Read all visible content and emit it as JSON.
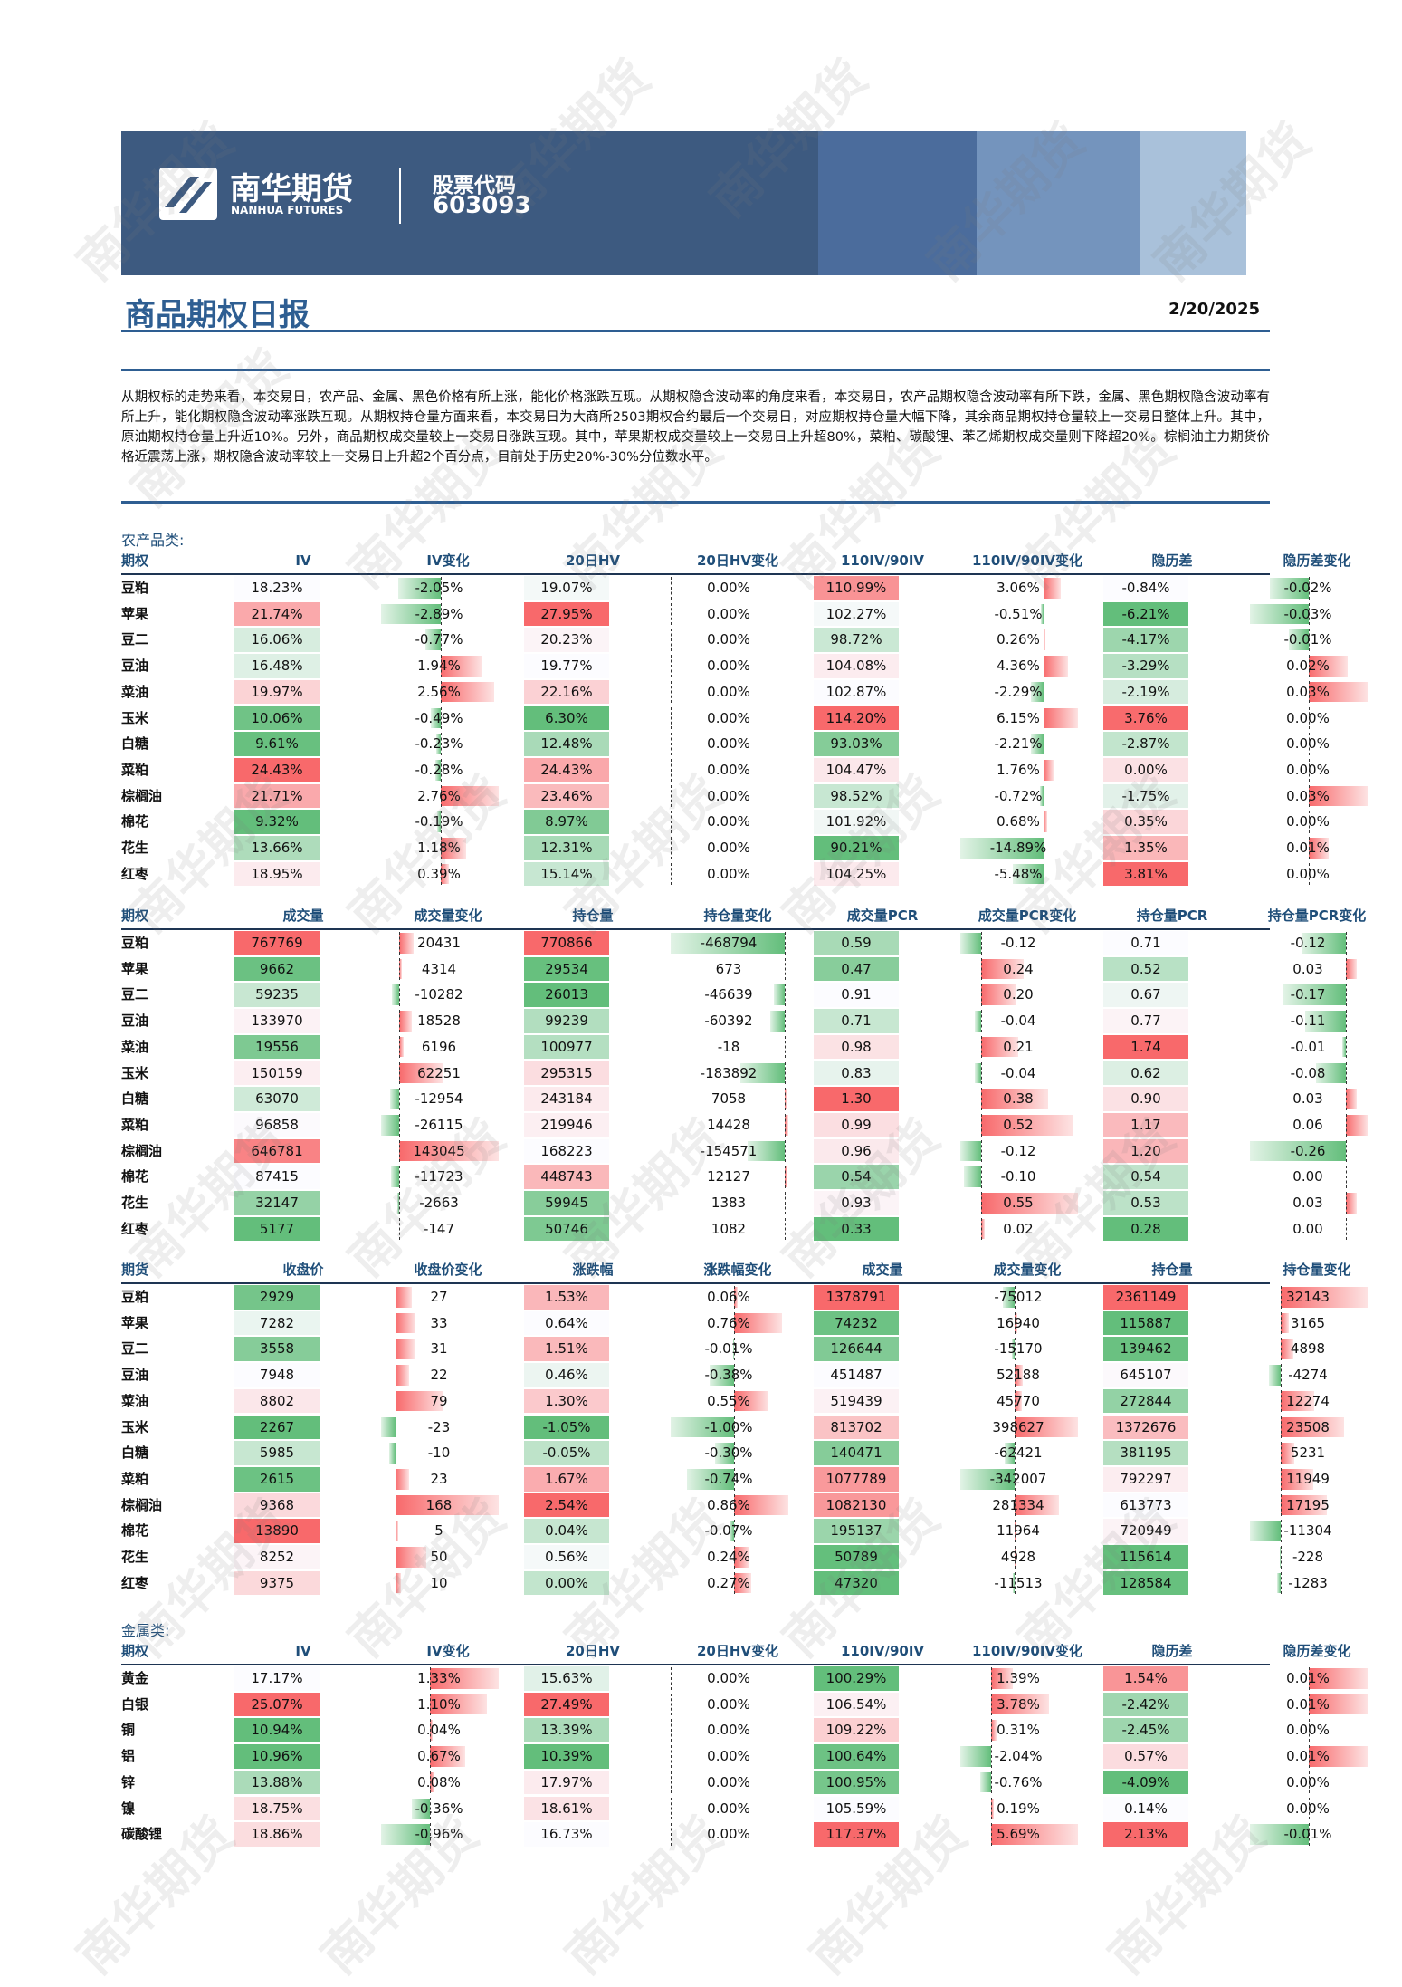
{
  "header": {
    "logo_cn": "南华期货",
    "logo_en": "NANHUA FUTURES",
    "code_label": "股票代码",
    "code": "603093"
  },
  "title": "商品期权日报",
  "date": "2/20/2025",
  "summary": "从期权标的走势来看，本交易日，农产品、金属、黑色价格有所上涨，能化价格涨跌互现。从期权隐含波动率的角度来看，本交易日，农产品期权隐含波动率有所下跌，金属、黑色期权隐含波动率有所上升，能化期权隐含波动率涨跌互现。从期权持仓量方面来看，本交易日为大商所2503期权合约最后一个交易日，对应期权持仓量大幅下降，其余商品期权持仓量较上一交易日整体上升。其中，原油期权持仓量上升近10%。另外，商品期权成交量较上一交易日涨跌互现。其中，苹果期权成交量较上一交易日上升超80%，菜粕、碳酸锂、苯乙烯期权成交量则下降超20%。棕榈油主力期货价格近震荡上涨，期权隐含波动率较上一交易日上升超2个百分点，目前处于历史20%-30%分位数水平。",
  "watermark": "南华期货",
  "groups": [
    {
      "label": "农产品类:",
      "tables": [
        {
          "headers": [
            "期权",
            "IV",
            "IV变化",
            "20日HV",
            "20日HV变化",
            "110IV/90IV",
            "110IV/90IV变化",
            "隐历差",
            "隐历差变化"
          ],
          "rows": [
            [
              "豆粕",
              "18.23%",
              "-2.05%",
              "19.07%",
              "0.00%",
              "110.99%",
              "3.06%",
              "-0.84%",
              "-0.02%"
            ],
            [
              "苹果",
              "21.74%",
              "-2.89%",
              "27.95%",
              "0.00%",
              "102.27%",
              "-0.51%",
              "-6.21%",
              "-0.03%"
            ],
            [
              "豆二",
              "16.06%",
              "-0.77%",
              "20.23%",
              "0.00%",
              "98.72%",
              "0.26%",
              "-4.17%",
              "-0.01%"
            ],
            [
              "豆油",
              "16.48%",
              "1.94%",
              "19.77%",
              "0.00%",
              "104.08%",
              "4.36%",
              "-3.29%",
              "0.02%"
            ],
            [
              "菜油",
              "19.97%",
              "2.56%",
              "22.16%",
              "0.00%",
              "102.87%",
              "-2.29%",
              "-2.19%",
              "0.03%"
            ],
            [
              "玉米",
              "10.06%",
              "-0.49%",
              "6.30%",
              "0.00%",
              "114.20%",
              "6.15%",
              "3.76%",
              "0.00%"
            ],
            [
              "白糖",
              "9.61%",
              "-0.23%",
              "12.48%",
              "0.00%",
              "93.03%",
              "-2.21%",
              "-2.87%",
              "0.00%"
            ],
            [
              "菜粕",
              "24.43%",
              "-0.28%",
              "24.43%",
              "0.00%",
              "104.47%",
              "1.76%",
              "0.00%",
              "0.00%"
            ],
            [
              "棕榈油",
              "21.71%",
              "2.76%",
              "23.46%",
              "0.00%",
              "98.52%",
              "-0.72%",
              "-1.75%",
              "0.03%"
            ],
            [
              "棉花",
              "9.32%",
              "-0.19%",
              "8.97%",
              "0.00%",
              "101.92%",
              "0.68%",
              "0.35%",
              "0.00%"
            ],
            [
              "花生",
              "13.66%",
              "1.18%",
              "12.31%",
              "0.00%",
              "90.21%",
              "-14.89%",
              "1.35%",
              "0.01%"
            ],
            [
              "红枣",
              "18.95%",
              "0.39%",
              "15.14%",
              "0.00%",
              "104.25%",
              "-5.48%",
              "3.81%",
              "0.00%"
            ]
          ]
        },
        {
          "headers": [
            "期权",
            "成交量",
            "成交量变化",
            "持仓量",
            "持仓量变化",
            "成交量PCR",
            "成交量PCR变化",
            "持仓量PCR",
            "持仓量PCR变化"
          ],
          "rows": [
            [
              "豆粕",
              "767769",
              "20431",
              "770866",
              "-468794",
              "0.59",
              "-0.12",
              "0.71",
              "-0.12"
            ],
            [
              "苹果",
              "9662",
              "4314",
              "29534",
              "673",
              "0.47",
              "0.24",
              "0.52",
              "0.03"
            ],
            [
              "豆二",
              "59235",
              "-10282",
              "26013",
              "-46639",
              "0.91",
              "0.20",
              "0.67",
              "-0.17"
            ],
            [
              "豆油",
              "133970",
              "18528",
              "99239",
              "-60392",
              "0.71",
              "-0.04",
              "0.77",
              "-0.11"
            ],
            [
              "菜油",
              "19556",
              "6196",
              "100977",
              "-18",
              "0.98",
              "0.21",
              "1.74",
              "-0.01"
            ],
            [
              "玉米",
              "150159",
              "62251",
              "295315",
              "-183892",
              "0.83",
              "-0.04",
              "0.62",
              "-0.08"
            ],
            [
              "白糖",
              "63070",
              "-12954",
              "243184",
              "7058",
              "1.30",
              "0.38",
              "0.90",
              "0.03"
            ],
            [
              "菜粕",
              "96858",
              "-26115",
              "219946",
              "14428",
              "0.99",
              "0.52",
              "1.17",
              "0.06"
            ],
            [
              "棕榈油",
              "646781",
              "143045",
              "168223",
              "-154571",
              "0.96",
              "-0.12",
              "1.20",
              "-0.26"
            ],
            [
              "棉花",
              "87415",
              "-11723",
              "448743",
              "12127",
              "0.54",
              "-0.10",
              "0.54",
              "0.00"
            ],
            [
              "花生",
              "32147",
              "-2663",
              "59945",
              "1383",
              "0.93",
              "0.55",
              "0.53",
              "0.03"
            ],
            [
              "红枣",
              "5177",
              "-147",
              "50746",
              "1082",
              "0.33",
              "0.02",
              "0.28",
              "0.00"
            ]
          ]
        },
        {
          "headers": [
            "期货",
            "收盘价",
            "收盘价变化",
            "涨跌幅",
            "涨跌幅变化",
            "成交量",
            "成交量变化",
            "持仓量",
            "持仓量变化"
          ],
          "rows": [
            [
              "豆粕",
              "2929",
              "27",
              "1.53%",
              "0.06%",
              "1378791",
              "-75012",
              "2361149",
              "32143"
            ],
            [
              "苹果",
              "7282",
              "33",
              "0.64%",
              "0.76%",
              "74232",
              "16940",
              "115887",
              "3165"
            ],
            [
              "豆二",
              "3558",
              "31",
              "1.51%",
              "-0.01%",
              "126644",
              "-15170",
              "139462",
              "4898"
            ],
            [
              "豆油",
              "7948",
              "22",
              "0.46%",
              "-0.38%",
              "451487",
              "52188",
              "645107",
              "-4274"
            ],
            [
              "菜油",
              "8802",
              "79",
              "1.30%",
              "0.55%",
              "519439",
              "45770",
              "272844",
              "12274"
            ],
            [
              "玉米",
              "2267",
              "-23",
              "-1.05%",
              "-1.00%",
              "813702",
              "398627",
              "1372676",
              "23508"
            ],
            [
              "白糖",
              "5985",
              "-10",
              "-0.05%",
              "-0.30%",
              "140471",
              "-62421",
              "381195",
              "5231"
            ],
            [
              "菜粕",
              "2615",
              "23",
              "1.67%",
              "-0.74%",
              "1077789",
              "-342007",
              "792297",
              "11949"
            ],
            [
              "棕榈油",
              "9368",
              "168",
              "2.54%",
              "0.86%",
              "1082130",
              "281334",
              "613773",
              "17195"
            ],
            [
              "棉花",
              "13890",
              "5",
              "0.04%",
              "-0.07%",
              "195137",
              "11964",
              "720949",
              "-11304"
            ],
            [
              "花生",
              "8252",
              "50",
              "0.56%",
              "0.24%",
              "50789",
              "4928",
              "115614",
              "-228"
            ],
            [
              "红枣",
              "9375",
              "10",
              "0.00%",
              "0.27%",
              "47320",
              "-11513",
              "128584",
              "-1283"
            ]
          ]
        }
      ]
    },
    {
      "label": "金属类:",
      "tables": [
        {
          "headers": [
            "期权",
            "IV",
            "IV变化",
            "20日HV",
            "20日HV变化",
            "110IV/90IV",
            "110IV/90IV变化",
            "隐历差",
            "隐历差变化"
          ],
          "rows": [
            [
              "黄金",
              "17.17%",
              "1.33%",
              "15.63%",
              "0.00%",
              "100.29%",
              "1.39%",
              "1.54%",
              "0.01%"
            ],
            [
              "白银",
              "25.07%",
              "1.10%",
              "27.49%",
              "0.00%",
              "106.54%",
              "3.78%",
              "-2.42%",
              "0.01%"
            ],
            [
              "铜",
              "10.94%",
              "0.04%",
              "13.39%",
              "0.00%",
              "109.22%",
              "0.31%",
              "-2.45%",
              "0.00%"
            ],
            [
              "铝",
              "10.96%",
              "0.67%",
              "10.39%",
              "0.00%",
              "100.64%",
              "-2.04%",
              "0.57%",
              "0.01%"
            ],
            [
              "锌",
              "13.88%",
              "0.08%",
              "17.97%",
              "0.00%",
              "100.95%",
              "-0.76%",
              "-4.09%",
              "0.00%"
            ],
            [
              "镍",
              "18.75%",
              "-0.36%",
              "18.61%",
              "0.00%",
              "105.59%",
              "0.19%",
              "0.14%",
              "0.00%"
            ],
            [
              "碳酸锂",
              "18.86%",
              "-0.96%",
              "16.73%",
              "0.00%",
              "117.37%",
              "5.69%",
              "2.13%",
              "-0.01%"
            ]
          ]
        }
      ]
    }
  ]
}
